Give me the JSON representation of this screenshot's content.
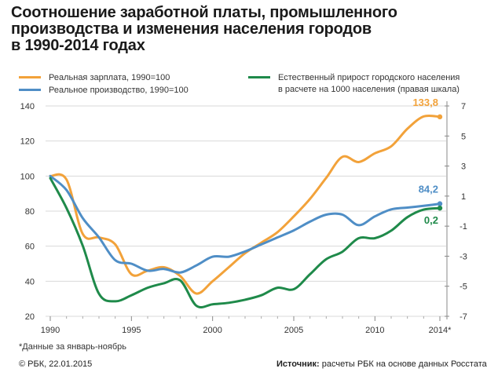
{
  "title_lines": [
    "Соотношение заработной платы, промышленного",
    "производства и изменения населения городов",
    "в 1990-2014 годах"
  ],
  "legend": {
    "wage": "Реальная зарплата, 1990=100",
    "production": "Реальное производство, 1990=100",
    "population_line1": "Естественный прирост городского населения",
    "population_line2": "в расчете на 1000 населения (правая шкала)"
  },
  "colors": {
    "wage": "#f2a23a",
    "production": "#4f8ec6",
    "population": "#1f8a4a",
    "grid": "#d9d9d9"
  },
  "chart_data": {
    "type": "line",
    "xlabel": "",
    "ylabel": "",
    "x_ticks": [
      "1990",
      "1995",
      "2000",
      "2005",
      "2010",
      "2014*"
    ],
    "xlim": [
      1990,
      2014
    ],
    "ylim_left": [
      20,
      140
    ],
    "y_ticks_left": [
      "20",
      "40",
      "60",
      "80",
      "100",
      "120",
      "140"
    ],
    "ylim_right": [
      -7,
      7
    ],
    "y_ticks_right": [
      "-7",
      "-5",
      "-3",
      "-1",
      "1",
      "3",
      "5",
      "7"
    ],
    "series": [
      {
        "name": "Реальная зарплата, 1990=100",
        "axis": "left",
        "color": "#f2a23a",
        "points": [
          [
            1990,
            100
          ],
          [
            1991,
            98
          ],
          [
            1992,
            67
          ],
          [
            1993,
            65
          ],
          [
            1994,
            61
          ],
          [
            1995,
            44
          ],
          [
            1996,
            46
          ],
          [
            1997,
            48
          ],
          [
            1998,
            43
          ],
          [
            1999,
            33
          ],
          [
            2000,
            40
          ],
          [
            2001,
            48
          ],
          [
            2002,
            56
          ],
          [
            2003,
            62
          ],
          [
            2004,
            68
          ],
          [
            2005,
            77
          ],
          [
            2006,
            87
          ],
          [
            2007,
            99
          ],
          [
            2008,
            111
          ],
          [
            2009,
            108
          ],
          [
            2010,
            113
          ],
          [
            2011,
            117
          ],
          [
            2012,
            127
          ],
          [
            2013,
            134
          ],
          [
            2014,
            133.8
          ]
        ]
      },
      {
        "name": "Реальное производство, 1990=100",
        "axis": "left",
        "color": "#4f8ec6",
        "points": [
          [
            1990,
            100
          ],
          [
            1991,
            92
          ],
          [
            1992,
            76
          ],
          [
            1993,
            65
          ],
          [
            1994,
            52
          ],
          [
            1995,
            50
          ],
          [
            1996,
            46
          ],
          [
            1997,
            47
          ],
          [
            1998,
            45
          ],
          [
            1999,
            49
          ],
          [
            2000,
            54
          ],
          [
            2001,
            54
          ],
          [
            2002,
            57
          ],
          [
            2003,
            61
          ],
          [
            2004,
            65
          ],
          [
            2005,
            69
          ],
          [
            2006,
            74
          ],
          [
            2007,
            78
          ],
          [
            2008,
            78
          ],
          [
            2009,
            72
          ],
          [
            2010,
            77
          ],
          [
            2011,
            81
          ],
          [
            2012,
            82
          ],
          [
            2013,
            83
          ],
          [
            2014,
            84.2
          ]
        ]
      },
      {
        "name": "Естественный прирост городского населения в расчете на 1000 населения (правая шкала)",
        "axis": "right",
        "color": "#1f8a4a",
        "points": [
          [
            1990,
            2.2
          ],
          [
            1991,
            0.2
          ],
          [
            1992,
            -2.3
          ],
          [
            1993,
            -5.5
          ],
          [
            1994,
            -6
          ],
          [
            1995,
            -5.6
          ],
          [
            1996,
            -5.1
          ],
          [
            1997,
            -4.8
          ],
          [
            1998,
            -4.6
          ],
          [
            1999,
            -6.3
          ],
          [
            2000,
            -6.2
          ],
          [
            2001,
            -6.1
          ],
          [
            2002,
            -5.9
          ],
          [
            2003,
            -5.6
          ],
          [
            2004,
            -5.1
          ],
          [
            2005,
            -5.2
          ],
          [
            2006,
            -4.2
          ],
          [
            2007,
            -3.2
          ],
          [
            2008,
            -2.7
          ],
          [
            2009,
            -1.8
          ],
          [
            2010,
            -1.8
          ],
          [
            2011,
            -1.3
          ],
          [
            2012,
            -0.4
          ],
          [
            2013,
            0.1
          ],
          [
            2014,
            0.2
          ]
        ]
      }
    ],
    "end_labels": [
      {
        "series": 0,
        "text": "133,8"
      },
      {
        "series": 1,
        "text": "84,2"
      },
      {
        "series": 2,
        "text": "0,2"
      }
    ],
    "grid": true
  },
  "note": "*Данные за январь-ноябрь",
  "footer": {
    "copyright": "© РБК, 22.01.2015",
    "source_label": "Источник:",
    "source_text": " расчеты РБК на основе данных Росстата"
  }
}
